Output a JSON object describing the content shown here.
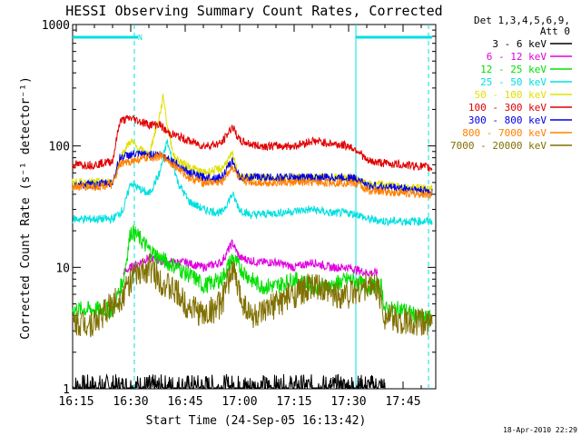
{
  "chart_data": {
    "type": "line",
    "title": "HESSI Observing Summary Count Rates, Corrected",
    "xlabel": "Start Time (24-Sep-05 16:13:42)",
    "ylabel": "Corrected Count Rate (s⁻¹ detector⁻¹)",
    "yscale": "log",
    "xlim_min": [
      14,
      114
    ],
    "ylim": [
      1,
      1000
    ],
    "x_tick_labels": [
      "16:15",
      "16:30",
      "16:45",
      "17:00",
      "17:15",
      "17:30",
      "17:45"
    ],
    "x_tick_values_min": [
      15,
      30,
      45,
      60,
      75,
      90,
      105
    ],
    "y_tick_labels": [
      "1",
      "10",
      "100",
      "1000"
    ],
    "y_tick_values": [
      1,
      10,
      100,
      1000
    ],
    "legend_header": [
      "Det 1,3,4,5,6,9,",
      "Att 0"
    ],
    "legend_position": "outside-right",
    "footer_date": "18-Apr-2010 22:29",
    "annotation_night_label": "N",
    "night_bars_min": [
      [
        14,
        32
      ],
      [
        92,
        113
      ]
    ],
    "vertical_lines_min": [
      [
        31,
        "#00e0e0",
        "dashed"
      ],
      [
        92,
        "#00e0e0",
        "solid"
      ],
      [
        112,
        "#00e0e0",
        "dashed"
      ]
    ],
    "series": [
      {
        "name": "3 - 6 keV",
        "color": "#000000",
        "x": [
          14,
          30,
          40,
          50,
          60,
          70,
          80,
          90,
          100
        ],
        "y": [
          1,
          1,
          1,
          1,
          1,
          1,
          1,
          1,
          1
        ]
      },
      {
        "name": "6 - 12 keV",
        "color": "#e000e0",
        "x": [
          28,
          30,
          35,
          40,
          45,
          50,
          55,
          58,
          60,
          65,
          70,
          75,
          80,
          85,
          90,
          95,
          98
        ],
        "y": [
          9,
          10,
          12,
          11,
          11,
          10,
          11,
          16,
          12,
          11,
          11,
          10,
          11,
          10,
          10,
          9,
          9
        ]
      },
      {
        "name": "12 - 25 keV",
        "color": "#00e000",
        "x": [
          14,
          25,
          28,
          30,
          32,
          35,
          38,
          40,
          43,
          45,
          48,
          50,
          55,
          58,
          60,
          63,
          66,
          70,
          75,
          80,
          85,
          90,
          95,
          99,
          100,
          105,
          110,
          113
        ],
        "y": [
          4.5,
          4.5,
          8,
          20,
          18,
          14,
          12,
          11,
          10,
          9,
          8,
          7,
          8,
          12,
          10,
          8,
          7,
          7,
          8,
          7,
          7,
          8,
          7,
          7,
          4.5,
          4.5,
          3.8,
          3.8
        ]
      },
      {
        "name": "25 - 50 keV",
        "color": "#00e0e0",
        "x": [
          14,
          25,
          28,
          30,
          32,
          35,
          38,
          40,
          43,
          46,
          50,
          55,
          58,
          60,
          63,
          70,
          80,
          85,
          90,
          93,
          95,
          100,
          105,
          113
        ],
        "y": [
          25,
          25,
          30,
          50,
          45,
          40,
          60,
          110,
          50,
          35,
          30,
          28,
          40,
          30,
          27,
          28,
          30,
          28,
          28,
          27,
          25,
          24,
          24,
          24
        ]
      },
      {
        "name": "50 - 100 keV",
        "color": "#e0e000",
        "x": [
          14,
          25,
          28,
          30,
          32,
          35,
          38,
          39,
          40,
          42,
          45,
          50,
          55,
          58,
          60,
          65,
          70,
          75,
          80,
          85,
          90,
          93,
          95,
          100,
          105,
          113
        ],
        "y": [
          50,
          50,
          90,
          110,
          95,
          85,
          180,
          260,
          150,
          80,
          70,
          60,
          65,
          85,
          55,
          55,
          55,
          55,
          55,
          55,
          55,
          52,
          48,
          48,
          45,
          45
        ]
      },
      {
        "name": "100 - 300 keV",
        "color": "#e00000",
        "x": [
          14,
          20,
          25,
          27,
          30,
          35,
          38,
          40,
          43,
          46,
          50,
          55,
          58,
          60,
          65,
          70,
          75,
          80,
          85,
          90,
          93,
          95,
          100,
          105,
          110,
          113
        ],
        "y": [
          70,
          70,
          75,
          160,
          170,
          150,
          150,
          130,
          120,
          110,
          100,
          105,
          145,
          110,
          100,
          100,
          100,
          110,
          105,
          100,
          90,
          75,
          72,
          70,
          68,
          65
        ]
      },
      {
        "name": "300 - 800 keV",
        "color": "#0000e0",
        "x": [
          14,
          20,
          25,
          27,
          30,
          35,
          38,
          40,
          43,
          46,
          50,
          55,
          58,
          60,
          65,
          70,
          75,
          80,
          85,
          90,
          93,
          95,
          100,
          105,
          110,
          113
        ],
        "y": [
          48,
          48,
          50,
          80,
          85,
          85,
          85,
          80,
          70,
          60,
          55,
          55,
          75,
          55,
          55,
          55,
          55,
          55,
          55,
          55,
          53,
          47,
          46,
          45,
          43,
          42
        ]
      },
      {
        "name": "800 - 7000 keV",
        "color": "#ff8000",
        "x": [
          14,
          20,
          25,
          27,
          30,
          35,
          38,
          40,
          43,
          46,
          50,
          55,
          58,
          60,
          65,
          70,
          75,
          80,
          85,
          90,
          93,
          95,
          100,
          105,
          110,
          113
        ],
        "y": [
          46,
          46,
          48,
          70,
          75,
          80,
          82,
          78,
          65,
          55,
          50,
          50,
          68,
          52,
          50,
          50,
          50,
          50,
          50,
          50,
          48,
          43,
          42,
          41,
          40,
          40
        ]
      },
      {
        "name": "7000 - 20000 keV",
        "color": "#807000",
        "x": [
          14,
          20,
          25,
          28,
          30,
          33,
          35,
          38,
          40,
          43,
          45,
          48,
          50,
          55,
          58,
          60,
          63,
          66,
          70,
          75,
          80,
          85,
          90,
          95,
          98,
          100,
          105,
          110,
          113
        ],
        "y": [
          3.5,
          3.5,
          5,
          6,
          8,
          9,
          10,
          8,
          7,
          6,
          5,
          4.5,
          4,
          5,
          10,
          6,
          4,
          4,
          5,
          6,
          7,
          6,
          6,
          7,
          7,
          4,
          3.5,
          3.5,
          3.5
        ]
      }
    ]
  }
}
